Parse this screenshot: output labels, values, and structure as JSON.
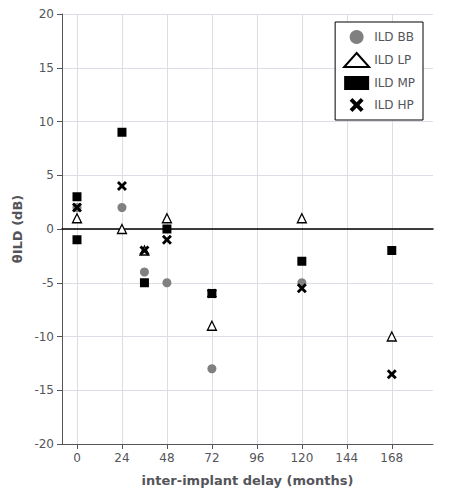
{
  "chart_data": {
    "type": "scatter",
    "title": "",
    "xlabel": "inter-implant delay (months)",
    "ylabel": "θILD (dB)",
    "xlim": [
      -8,
      190
    ],
    "ylim": [
      -20,
      20
    ],
    "xticks": [
      0,
      24,
      48,
      72,
      96,
      120,
      144,
      168
    ],
    "yticks": [
      -20,
      -15,
      -10,
      -5,
      0,
      5,
      10,
      15,
      20
    ],
    "grid": true,
    "legend": "upper right",
    "series": [
      {
        "name": "ILD BB",
        "marker": "circle",
        "color": "#808080",
        "x": [
          0,
          24,
          36,
          48,
          72,
          120
        ],
        "values": [
          2,
          2,
          -4,
          -5,
          -13,
          -5
        ]
      },
      {
        "name": "ILD LP",
        "marker": "triangle-open",
        "color": "#000000",
        "x": [
          0,
          24,
          36,
          48,
          72,
          120,
          168
        ],
        "values": [
          1,
          0,
          -2,
          1,
          -9,
          1,
          -10
        ]
      },
      {
        "name": "ILD MP",
        "marker": "square",
        "color": "#000000",
        "x": [
          0,
          0,
          24,
          36,
          48,
          72,
          120,
          168
        ],
        "values": [
          3,
          -1,
          9,
          -5,
          0,
          -6,
          -3,
          -2
        ]
      },
      {
        "name": "ILD HP",
        "marker": "x",
        "color": "#000000",
        "x": [
          0,
          24,
          36,
          48,
          72,
          120,
          168
        ],
        "values": [
          2,
          4,
          -2,
          -1,
          -6,
          -5.5,
          -13.5
        ]
      }
    ]
  }
}
